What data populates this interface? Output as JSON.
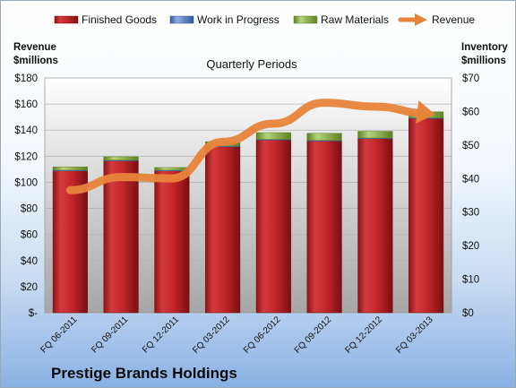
{
  "company": "Prestige Brands Holdings",
  "chart_data": {
    "type": "bar",
    "stacked": true,
    "title": "Quarterly Periods",
    "categories": [
      "FQ 06-2011",
      "FQ 09-2011",
      "FQ 12-2011",
      "FQ 03-2012",
      "FQ 06-2012",
      "FQ 09-2012",
      "FQ 12-2012",
      "FQ 03-2013"
    ],
    "left_axis": {
      "label_line1": "Revenue",
      "label_line2": "$millions",
      "ylim": [
        0,
        180
      ],
      "ticks": [
        "$-",
        "$20",
        "$40",
        "$60",
        "$80",
        "$100",
        "$120",
        "$140",
        "$160",
        "$180"
      ]
    },
    "right_axis": {
      "label_line1": "Inventory",
      "label_line2": "$millions",
      "ylim": [
        0,
        70
      ],
      "ticks": [
        "$0",
        "$10",
        "$20",
        "$30",
        "$40",
        "$50",
        "$60",
        "$70"
      ]
    },
    "series": [
      {
        "name": "Finished Goods",
        "axis": "right",
        "kind": "bar",
        "color": "#c0262a",
        "values": [
          42.3,
          45.3,
          42.3,
          49.5,
          51.5,
          51.2,
          51.9,
          57.9
        ]
      },
      {
        "name": "Work in Progress",
        "axis": "right",
        "kind": "bar",
        "color": "#5b82c8",
        "values": [
          0.2,
          0.2,
          0.2,
          0.2,
          0.2,
          0.2,
          0.2,
          0.2
        ]
      },
      {
        "name": "Raw Materials",
        "axis": "right",
        "kind": "bar",
        "color": "#8fb34a",
        "values": [
          1.0,
          1.0,
          0.8,
          1.3,
          2.0,
          2.1,
          2.0,
          1.8
        ]
      },
      {
        "name": "Revenue",
        "axis": "left",
        "kind": "line",
        "color": "#e8843a",
        "values": [
          94,
          104,
          103,
          131,
          145,
          161,
          158,
          153
        ]
      }
    ],
    "legend_position": "top"
  }
}
